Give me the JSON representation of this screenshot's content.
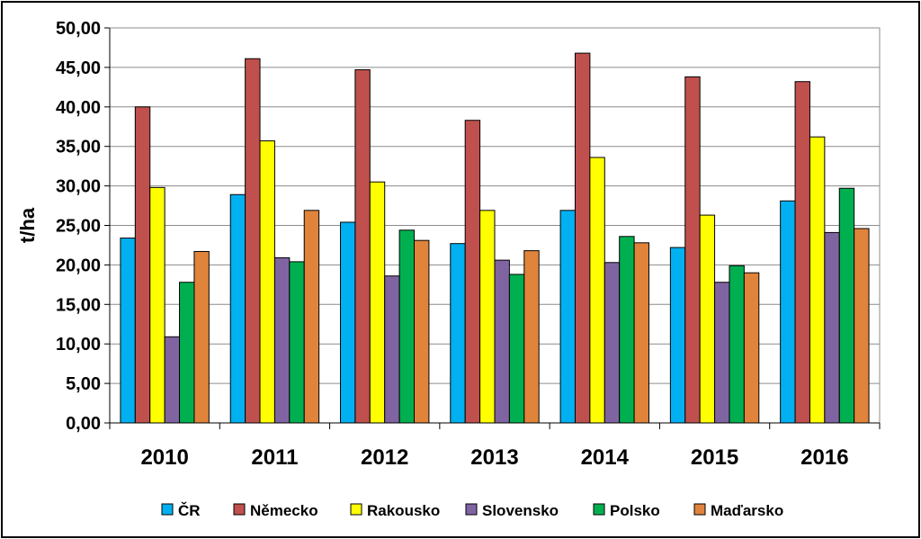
{
  "chart_data": {
    "type": "bar",
    "ylabel": "t/ha",
    "ylim": [
      0,
      50
    ],
    "yticks": [
      "0,00",
      "5,00",
      "10,00",
      "15,00",
      "20,00",
      "25,00",
      "30,00",
      "35,00",
      "40,00",
      "45,00",
      "50,00"
    ],
    "grid": true,
    "legend_position": "bottom",
    "categories": [
      "2010",
      "2011",
      "2012",
      "2013",
      "2014",
      "2015",
      "2016"
    ],
    "series": [
      {
        "name": "ČR",
        "color": "#00B0F0",
        "values": [
          23.4,
          28.9,
          25.4,
          22.7,
          26.9,
          22.2,
          28.1
        ]
      },
      {
        "name": "Německo",
        "color": "#C0504D",
        "values": [
          40.0,
          46.1,
          44.7,
          38.3,
          46.8,
          43.8,
          43.2
        ]
      },
      {
        "name": "Rakousko",
        "color": "#FFFF00",
        "values": [
          29.8,
          35.7,
          30.5,
          26.9,
          33.6,
          26.3,
          36.2
        ]
      },
      {
        "name": "Slovensko",
        "color": "#8064A2",
        "values": [
          10.9,
          20.9,
          18.6,
          20.6,
          20.3,
          17.8,
          24.1
        ]
      },
      {
        "name": "Polsko",
        "color": "#00B050",
        "values": [
          17.8,
          20.4,
          24.4,
          18.8,
          23.6,
          19.9,
          29.7
        ]
      },
      {
        "name": "Maďarsko",
        "color": "#E0843B",
        "values": [
          21.7,
          26.9,
          23.1,
          21.8,
          22.8,
          19.0,
          24.6
        ]
      }
    ]
  }
}
